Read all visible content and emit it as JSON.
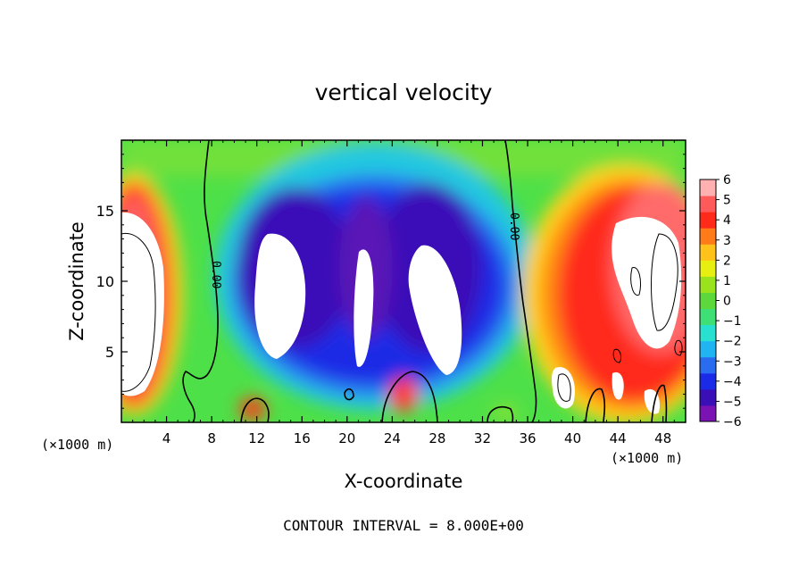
{
  "chart_data": {
    "type": "heatmap",
    "title": "vertical velocity",
    "xlabel": "X-coordinate",
    "ylabel": "Z-coordinate",
    "x_units": "(×1000 m)",
    "x_units_right": "(×1000 m)",
    "footer": "CONTOUR INTERVAL = 8.000E+00",
    "xlim": [
      0,
      50
    ],
    "ylim": [
      0,
      20
    ],
    "xticks": [
      4,
      8,
      12,
      16,
      20,
      24,
      28,
      32,
      36,
      40,
      44,
      48
    ],
    "yticks": [
      5,
      10,
      15
    ],
    "colorbar": {
      "min": -6,
      "max": 6,
      "ticks": [
        6,
        5,
        4,
        3,
        2,
        1,
        0,
        -1,
        -2,
        -3,
        -4,
        -5,
        -6
      ],
      "colors": [
        "#7a12b4",
        "#3a0fb8",
        "#1a2ae6",
        "#2a6cf0",
        "#20b4f2",
        "#27e0cf",
        "#3ee076",
        "#5cd83c",
        "#9ae31c",
        "#e6ef10",
        "#ffc21a",
        "#ff7a18",
        "#ff2a1a",
        "#ff5a5a",
        "#ffb0b0"
      ],
      "over_color": "#ffffff"
    },
    "contour_labels": [
      "0.00",
      "0.00"
    ]
  }
}
